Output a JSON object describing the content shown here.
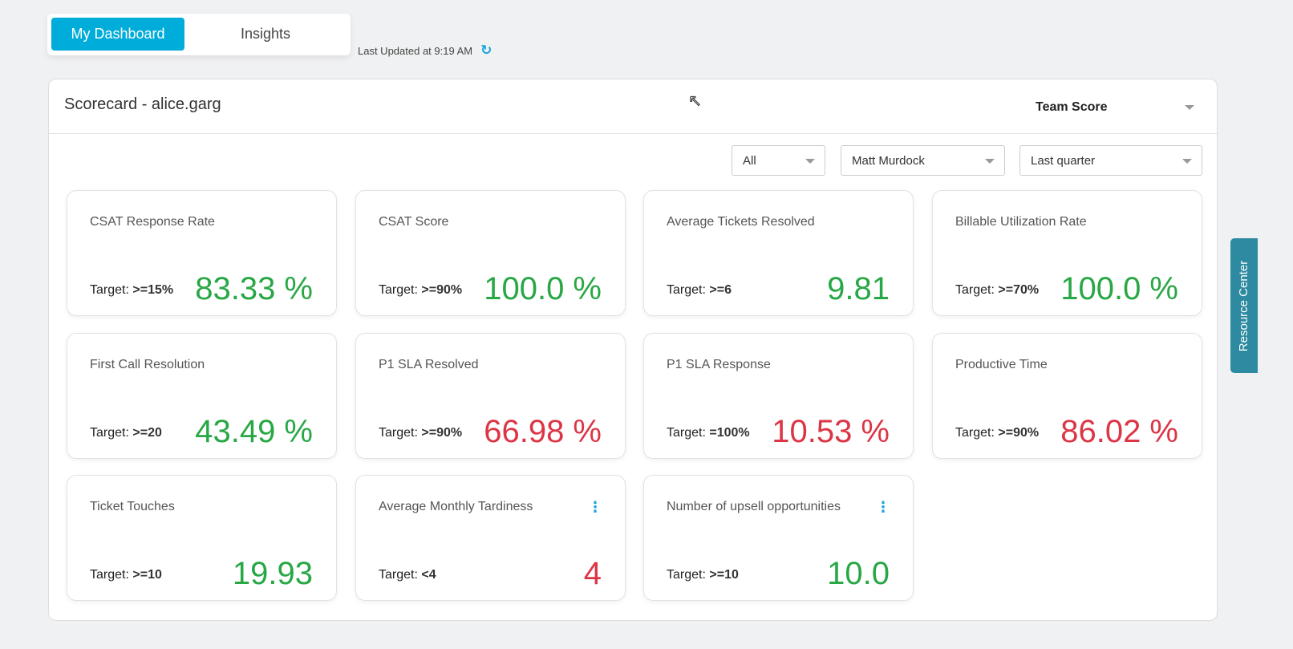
{
  "tabs": {
    "dashboard": "My Dashboard",
    "insights": "Insights"
  },
  "last_updated": "Last Updated at 9:19 AM",
  "panel": {
    "title": "Scorecard - alice.garg",
    "score_select": "Team Score"
  },
  "filters": {
    "type": "All",
    "person": "Matt Murdock",
    "period": "Last quarter"
  },
  "colors": {
    "good": "#28a745",
    "bad": "#dc3545",
    "accent": "#00acd9"
  },
  "cards": [
    {
      "title": "CSAT Response Rate",
      "target_label": "Target:",
      "target": ">=15%",
      "value": "83.33 %",
      "status": "good"
    },
    {
      "title": "CSAT Score",
      "target_label": "Target:",
      "target": ">=90%",
      "value": "100.0 %",
      "status": "good"
    },
    {
      "title": "Average Tickets Resolved",
      "target_label": "Target:",
      "target": ">=6",
      "value": "9.81",
      "status": "good"
    },
    {
      "title": "Billable Utilization Rate",
      "target_label": "Target:",
      "target": ">=70%",
      "value": "100.0 %",
      "status": "good"
    },
    {
      "title": "First Call Resolution",
      "target_label": "Target:",
      "target": ">=20",
      "value": "43.49 %",
      "status": "good"
    },
    {
      "title": "P1 SLA Resolved",
      "target_label": "Target:",
      "target": ">=90%",
      "value": "66.98 %",
      "status": "bad"
    },
    {
      "title": "P1 SLA Response",
      "target_label": "Target:",
      "target": "=100%",
      "value": "10.53 %",
      "status": "bad"
    },
    {
      "title": "Productive Time",
      "target_label": "Target:",
      "target": ">=90%",
      "value": "86.02 %",
      "status": "bad"
    },
    {
      "title": "Ticket Touches",
      "target_label": "Target:",
      "target": ">=10",
      "value": "19.93",
      "status": "good"
    },
    {
      "title": "Average Monthly Tardiness",
      "target_label": "Target:",
      "target": "<4",
      "value": "4",
      "status": "bad",
      "menu": true
    },
    {
      "title": "Number of upsell opportunities",
      "target_label": "Target:",
      "target": ">=10",
      "value": "10.0",
      "status": "good",
      "menu": true
    }
  ],
  "resource_center": "Resource Center"
}
